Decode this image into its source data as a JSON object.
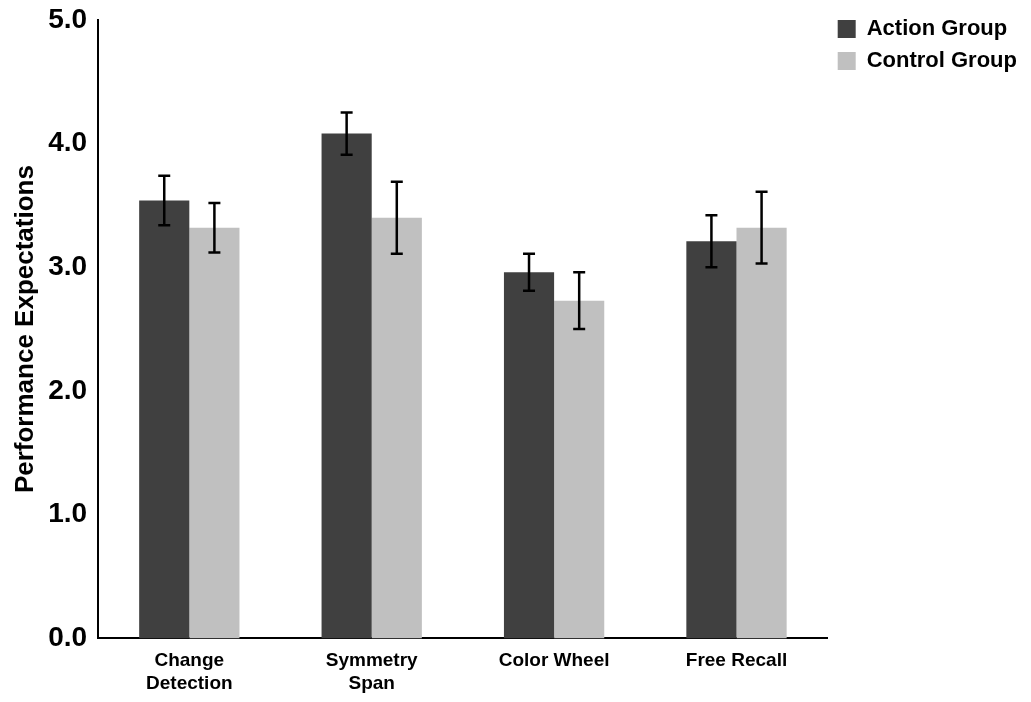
{
  "chart_data": {
    "type": "bar",
    "ylabel": "Performance Expectations",
    "categories": [
      "Change\nDetection",
      "Symmetry\nSpan",
      "Color Wheel",
      "Free Recall"
    ],
    "series": [
      {
        "name": "Action Group",
        "color": "#404040",
        "values": [
          3.54,
          4.08,
          2.96,
          3.21
        ],
        "errors": [
          0.2,
          0.17,
          0.15,
          0.21
        ]
      },
      {
        "name": "Control Group",
        "color": "#c0c0c0",
        "values": [
          3.32,
          3.4,
          2.73,
          3.32
        ],
        "errors": [
          0.2,
          0.29,
          0.23,
          0.29
        ]
      }
    ],
    "ylim": [
      0,
      5
    ],
    "yticks": [
      {
        "value": 0,
        "label": "0.0"
      },
      {
        "value": 1,
        "label": "1.0"
      },
      {
        "value": 2,
        "label": "2.0"
      },
      {
        "value": 3,
        "label": "3.0"
      },
      {
        "value": 4,
        "label": "4.0"
      },
      {
        "value": 5,
        "label": "5.0"
      }
    ],
    "grid": false,
    "legend": "top right"
  }
}
